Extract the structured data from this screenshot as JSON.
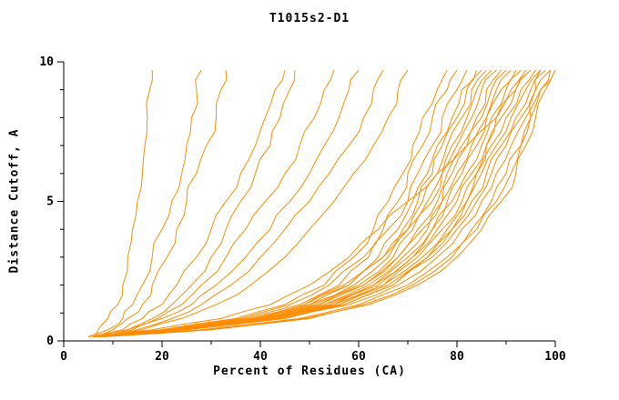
{
  "title": "T1015s2-D1",
  "axes": {
    "x": {
      "label": "Percent of Residues (CA)",
      "min": 0,
      "max": 100,
      "major_ticks": [
        0,
        20,
        40,
        60,
        80,
        100
      ],
      "minor_step": 10
    },
    "y": {
      "label": "Distance Cutoff, A",
      "min": 0,
      "max": 10,
      "major_ticks": [
        0,
        5,
        10
      ],
      "minor_step": 1
    }
  },
  "style": {
    "line_color": "#ff8c00",
    "axis_color": "#000000",
    "background": "#ffffff"
  },
  "chart_data": {
    "type": "line",
    "title": "T1015s2-D1",
    "xlabel": "Percent of Residues (CA)",
    "ylabel": "Distance Cutoff, A",
    "xlim": [
      0,
      100
    ],
    "ylim": [
      0,
      10
    ],
    "grid": false,
    "legend": null,
    "cutoff_values": [
      0.15,
      0.4,
      0.8,
      1.3,
      2,
      3,
      4,
      5,
      6,
      7,
      8,
      9,
      9.7
    ],
    "series_x_percent": [
      [
        6,
        20,
        35,
        45,
        53,
        59,
        63,
        66,
        69,
        71,
        73,
        76,
        78
      ],
      [
        6,
        20,
        36,
        46,
        54,
        61,
        65,
        68,
        70,
        73,
        75,
        78,
        80
      ],
      [
        7,
        21,
        37,
        48,
        56,
        62,
        66,
        70,
        72,
        75,
        77,
        80,
        82
      ],
      [
        6,
        21,
        38,
        49,
        57,
        64,
        68,
        71,
        74,
        76,
        79,
        81,
        84
      ],
      [
        7,
        22,
        38,
        49,
        58,
        65,
        69,
        72,
        75,
        77,
        80,
        82,
        85
      ],
      [
        6,
        22,
        39,
        50,
        58,
        65,
        70,
        73,
        76,
        78,
        81,
        83,
        86
      ],
      [
        7,
        22,
        39,
        50,
        59,
        66,
        70,
        74,
        77,
        79,
        82,
        84,
        87
      ],
      [
        6,
        22,
        40,
        51,
        60,
        67,
        71,
        75,
        77,
        80,
        83,
        85,
        88
      ],
      [
        7,
        22,
        40,
        52,
        61,
        68,
        72,
        76,
        78,
        81,
        84,
        86,
        89
      ],
      [
        6,
        23,
        41,
        52,
        61,
        68,
        73,
        77,
        79,
        82,
        85,
        87,
        90
      ],
      [
        7,
        23,
        41,
        53,
        62,
        69,
        74,
        77,
        80,
        83,
        86,
        88,
        91
      ],
      [
        6,
        23,
        41,
        53,
        63,
        70,
        75,
        78,
        81,
        84,
        86,
        89,
        92
      ],
      [
        7,
        23,
        42,
        54,
        63,
        71,
        75,
        79,
        82,
        85,
        87,
        90,
        93
      ],
      [
        6,
        24,
        42,
        55,
        64,
        71,
        76,
        80,
        83,
        86,
        88,
        91,
        94
      ],
      [
        7,
        24,
        43,
        55,
        65,
        72,
        77,
        81,
        84,
        86,
        89,
        92,
        95
      ],
      [
        6,
        24,
        43,
        56,
        65,
        73,
        78,
        82,
        84,
        87,
        90,
        93,
        96
      ],
      [
        7,
        24,
        44,
        56,
        66,
        74,
        79,
        82,
        85,
        88,
        91,
        94,
        97
      ],
      [
        6,
        25,
        44,
        57,
        67,
        74,
        79,
        83,
        86,
        89,
        92,
        95,
        98
      ],
      [
        7,
        25,
        44,
        57,
        67,
        75,
        80,
        84,
        87,
        90,
        93,
        96,
        99
      ],
      [
        6,
        25,
        45,
        58,
        68,
        76,
        81,
        85,
        88,
        91,
        94,
        97,
        100
      ],
      [
        8,
        30,
        50,
        62,
        72,
        80,
        85,
        89,
        92,
        94,
        96,
        98,
        100
      ],
      [
        8,
        28,
        48,
        60,
        70,
        78,
        83,
        87,
        90,
        93,
        95,
        97,
        99
      ],
      [
        8,
        29,
        49,
        61,
        71,
        79,
        84,
        88,
        91,
        93,
        95,
        96,
        97
      ],
      [
        5,
        18,
        32,
        42,
        50,
        58,
        64,
        70,
        76,
        82,
        88,
        92,
        95
      ],
      [
        5,
        7,
        9,
        11,
        12,
        13,
        14,
        15,
        16,
        16.5,
        17,
        17.5,
        18
      ],
      [
        6,
        9,
        12,
        14,
        16,
        18,
        20,
        22,
        24,
        25,
        26,
        27,
        28
      ],
      [
        6,
        10,
        13,
        16,
        18,
        21,
        23,
        25,
        27,
        29,
        31,
        32,
        33
      ],
      [
        7,
        12,
        16,
        20,
        23,
        27,
        30,
        33,
        36,
        39,
        41,
        43,
        45
      ],
      [
        8,
        13,
        18,
        22,
        26,
        30,
        33,
        36,
        39,
        42,
        44,
        46,
        47
      ],
      [
        7,
        13,
        19,
        24,
        28,
        33,
        37,
        41,
        45,
        48,
        51,
        53,
        55
      ],
      [
        8,
        14,
        20,
        26,
        31,
        37,
        42,
        46,
        50,
        53,
        56,
        58,
        60
      ],
      [
        8,
        15,
        22,
        28,
        34,
        40,
        45,
        50,
        54,
        58,
        61,
        63,
        65
      ],
      [
        8,
        16,
        24,
        31,
        38,
        45,
        50,
        55,
        59,
        63,
        66,
        68,
        70
      ]
    ]
  }
}
